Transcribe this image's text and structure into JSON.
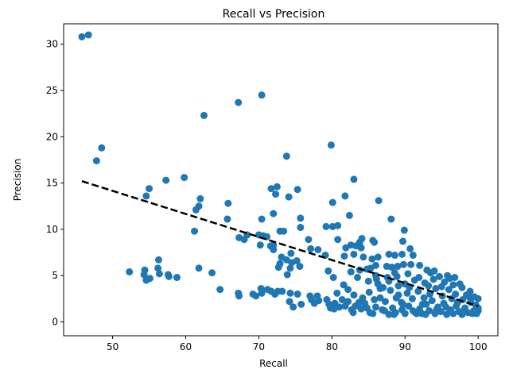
{
  "chart_data": {
    "type": "scatter",
    "title": "Recall vs Precision",
    "xlabel": "Recall",
    "ylabel": "Precision",
    "xlim": [
      43.3,
      102.7
    ],
    "ylim": [
      -1.5,
      32.2
    ],
    "xticks": [
      50,
      60,
      70,
      80,
      90,
      100
    ],
    "yticks": [
      0,
      5,
      10,
      15,
      20,
      25,
      30
    ],
    "grid": false,
    "marker_color": "#1f77b4",
    "trendline": {
      "style": "dashed",
      "color": "#000000",
      "x": [
        45.8,
        100
      ],
      "y": [
        15.2,
        1.7
      ]
    },
    "points": [
      [
        45.8,
        30.8
      ],
      [
        46.7,
        31.0
      ],
      [
        48.5,
        18.8
      ],
      [
        47.8,
        17.4
      ],
      [
        70.4,
        24.5
      ],
      [
        67.2,
        23.7
      ],
      [
        62.5,
        22.3
      ],
      [
        79.9,
        19.1
      ],
      [
        73.8,
        17.9
      ],
      [
        59.8,
        15.6
      ],
      [
        57.3,
        15.3
      ],
      [
        55.0,
        14.4
      ],
      [
        54.6,
        13.6
      ],
      [
        83.0,
        15.4
      ],
      [
        75.3,
        14.3
      ],
      [
        72.5,
        14.6
      ],
      [
        71.7,
        14.4
      ],
      [
        72.3,
        13.8
      ],
      [
        74.1,
        13.5
      ],
      [
        80.1,
        12.9
      ],
      [
        81.8,
        13.6
      ],
      [
        86.4,
        13.1
      ],
      [
        62.0,
        13.3
      ],
      [
        61.8,
        12.5
      ],
      [
        61.4,
        12.1
      ],
      [
        65.8,
        12.8
      ],
      [
        65.7,
        11.1
      ],
      [
        70.4,
        11.1
      ],
      [
        72.0,
        11.7
      ],
      [
        75.7,
        11.2
      ],
      [
        82.4,
        11.5
      ],
      [
        88.1,
        11.1
      ],
      [
        61.2,
        9.8
      ],
      [
        67.3,
        9.1
      ],
      [
        68.0,
        8.9
      ],
      [
        68.4,
        9.4
      ],
      [
        70.0,
        9.4
      ],
      [
        70.6,
        9.3
      ],
      [
        71.1,
        9.2
      ],
      [
        71.6,
        8.2
      ],
      [
        72.0,
        8.3
      ],
      [
        72.9,
        9.8
      ],
      [
        73.4,
        9.8
      ],
      [
        75.7,
        10.2
      ],
      [
        76.8,
        8.9
      ],
      [
        79.2,
        10.3
      ],
      [
        80.1,
        10.3
      ],
      [
        80.8,
        10.4
      ],
      [
        80.8,
        8.9
      ],
      [
        84.1,
        9.0
      ],
      [
        85.6,
        8.8
      ],
      [
        89.9,
        9.9
      ],
      [
        89.7,
        8.7
      ],
      [
        70.2,
        8.3
      ],
      [
        72.0,
        7.8
      ],
      [
        73.1,
        7.0
      ],
      [
        74.4,
        7.4
      ],
      [
        77.1,
        7.9
      ],
      [
        78.1,
        7.8
      ],
      [
        79.1,
        7.2
      ],
      [
        81.9,
        8.0
      ],
      [
        82.6,
        8.3
      ],
      [
        83.3,
        8.2
      ],
      [
        83.8,
        8.6
      ],
      [
        85.8,
        8.6
      ],
      [
        84.0,
        8.0
      ],
      [
        83.0,
        7.3
      ],
      [
        81.7,
        7.1
      ],
      [
        84.3,
        7.0
      ],
      [
        85.5,
        6.8
      ],
      [
        86.3,
        7.0
      ],
      [
        87.8,
        7.3
      ],
      [
        88.6,
        7.2
      ],
      [
        89.6,
        7.3
      ],
      [
        90.7,
        7.9
      ],
      [
        91.1,
        7.2
      ],
      [
        56.3,
        6.7
      ],
      [
        56.2,
        5.8
      ],
      [
        56.4,
        5.2
      ],
      [
        54.4,
        5.6
      ],
      [
        52.3,
        5.4
      ],
      [
        54.3,
        5.1
      ],
      [
        54.6,
        4.5
      ],
      [
        55.1,
        4.7
      ],
      [
        57.6,
        5.1
      ],
      [
        57.7,
        4.9
      ],
      [
        58.8,
        4.8
      ],
      [
        61.8,
        5.8
      ],
      [
        63.6,
        5.3
      ],
      [
        64.7,
        3.5
      ],
      [
        72.9,
        6.3
      ],
      [
        73.8,
        6.7
      ],
      [
        74.5,
        6.4
      ],
      [
        75.2,
        6.6
      ],
      [
        75.6,
        6.0
      ],
      [
        72.7,
        5.9
      ],
      [
        74.3,
        5.8
      ],
      [
        73.9,
        5.1
      ],
      [
        79.5,
        5.5
      ],
      [
        80.2,
        4.8
      ],
      [
        82.6,
        5.4
      ],
      [
        83.8,
        5.6
      ],
      [
        84.8,
        5.7
      ],
      [
        85.3,
        5.8
      ],
      [
        86.0,
        6.1
      ],
      [
        87.5,
        6.0
      ],
      [
        88.2,
        5.9
      ],
      [
        89.0,
        6.0
      ],
      [
        89.8,
        6.2
      ],
      [
        90.8,
        6.2
      ],
      [
        92.0,
        6.1
      ],
      [
        93.0,
        5.6
      ],
      [
        94.0,
        5.5
      ],
      [
        95.8,
        5.0
      ],
      [
        96.8,
        4.8
      ],
      [
        97.5,
        4.1
      ],
      [
        67.2,
        3.1
      ],
      [
        67.3,
        2.8
      ],
      [
        69.2,
        3.0
      ],
      [
        69.6,
        2.8
      ],
      [
        70.3,
        3.6
      ],
      [
        70.4,
        3.1
      ],
      [
        71.2,
        3.5
      ],
      [
        71.7,
        3.3
      ],
      [
        72.2,
        3.0
      ],
      [
        72.6,
        3.3
      ],
      [
        73.2,
        3.3
      ],
      [
        74.3,
        3.1
      ],
      [
        74.2,
        2.2
      ],
      [
        74.7,
        1.6
      ],
      [
        75.3,
        3.0
      ],
      [
        75.8,
        1.9
      ],
      [
        77.0,
        2.8
      ],
      [
        77.2,
        2.4
      ],
      [
        77.6,
        2.0
      ],
      [
        78.0,
        2.8
      ],
      [
        78.2,
        2.3
      ],
      [
        79.3,
        2.4
      ],
      [
        79.6,
        1.9
      ],
      [
        79.8,
        1.5
      ],
      [
        80.3,
        1.4
      ],
      [
        81.0,
        1.6
      ],
      [
        81.8,
        1.7
      ],
      [
        82.2,
        2.2
      ],
      [
        82.7,
        1.3
      ],
      [
        83.2,
        1.7
      ],
      [
        84.0,
        1.4
      ],
      [
        84.8,
        1.5
      ],
      [
        85.2,
        1.0
      ],
      [
        86.0,
        1.6
      ],
      [
        86.6,
        2.6
      ],
      [
        87.2,
        1.2
      ],
      [
        87.8,
        0.8
      ],
      [
        88.3,
        1.5
      ],
      [
        88.7,
        1.0
      ],
      [
        89.1,
        2.9
      ],
      [
        89.6,
        1.3
      ],
      [
        90.0,
        0.9
      ],
      [
        90.5,
        1.7
      ],
      [
        91.1,
        1.2
      ],
      [
        91.6,
        0.9
      ],
      [
        92.0,
        1.4
      ],
      [
        92.4,
        1.9
      ],
      [
        92.8,
        0.8
      ],
      [
        93.3,
        1.2
      ],
      [
        93.7,
        2.3
      ],
      [
        94.1,
        0.9
      ],
      [
        94.5,
        1.6
      ],
      [
        94.9,
        1.1
      ],
      [
        95.3,
        2.0
      ],
      [
        95.7,
        0.8
      ],
      [
        96.2,
        1.3
      ],
      [
        96.6,
        0.9
      ],
      [
        97.0,
        1.7
      ],
      [
        97.4,
        1.1
      ],
      [
        97.8,
        0.8
      ],
      [
        98.2,
        1.5
      ],
      [
        98.6,
        1.0
      ],
      [
        99.0,
        2.1
      ],
      [
        99.4,
        1.2
      ],
      [
        99.8,
        0.9
      ],
      [
        100.0,
        1.5
      ],
      [
        100.0,
        2.5
      ],
      [
        99.7,
        1.8
      ],
      [
        98.9,
        2.6
      ],
      [
        97.9,
        2.4
      ],
      [
        96.9,
        3.0
      ],
      [
        96.0,
        3.5
      ],
      [
        95.1,
        2.8
      ],
      [
        94.2,
        3.6
      ],
      [
        93.4,
        3.0
      ],
      [
        92.6,
        2.6
      ],
      [
        91.8,
        3.3
      ],
      [
        91.0,
        2.5
      ],
      [
        90.3,
        3.1
      ],
      [
        89.5,
        2.1
      ],
      [
        88.8,
        2.6
      ],
      [
        88.0,
        3.4
      ],
      [
        87.3,
        2.2
      ],
      [
        86.6,
        3.6
      ],
      [
        85.8,
        2.4
      ],
      [
        85.1,
        3.2
      ],
      [
        84.5,
        2.0
      ],
      [
        83.7,
        2.1
      ],
      [
        83.0,
        2.9
      ],
      [
        82.2,
        3.5
      ],
      [
        81.6,
        4.0
      ],
      [
        80.7,
        3.1
      ],
      [
        86.1,
        4.6
      ],
      [
        87.8,
        4.4
      ],
      [
        88.9,
        4.9
      ],
      [
        90.0,
        4.1
      ],
      [
        91.3,
        4.5
      ],
      [
        92.7,
        4.2
      ],
      [
        93.9,
        4.6
      ],
      [
        95.4,
        4.3
      ],
      [
        96.6,
        4.0
      ],
      [
        97.8,
        3.7
      ],
      [
        98.9,
        3.3
      ],
      [
        99.5,
        2.7
      ],
      [
        100.0,
        1.2
      ],
      [
        94.3,
        1.3
      ],
      [
        92.9,
        1.9
      ],
      [
        91.4,
        1.0
      ],
      [
        89.7,
        1.9
      ],
      [
        88.5,
        0.8
      ],
      [
        86.9,
        1.3
      ],
      [
        85.6,
        0.9
      ],
      [
        84.2,
        2.6
      ],
      [
        82.9,
        1.0
      ],
      [
        81.4,
        2.4
      ],
      [
        80.4,
        2.0
      ],
      [
        93.2,
        3.9
      ],
      [
        95.0,
        3.8
      ],
      [
        96.4,
        2.5
      ],
      [
        97.2,
        2.1
      ],
      [
        98.4,
        2.9
      ],
      [
        90.6,
        3.7
      ],
      [
        89.1,
        3.9
      ],
      [
        87.6,
        4.8
      ],
      [
        86.3,
        4.1
      ],
      [
        85.0,
        4.4
      ],
      [
        83.5,
        4.8
      ],
      [
        93.5,
        5.3
      ],
      [
        94.7,
        4.9
      ],
      [
        96.1,
        4.7
      ],
      [
        91.9,
        4.8
      ],
      [
        90.4,
        5.2
      ],
      [
        88.6,
        5.3
      ],
      [
        87.0,
        3.7
      ],
      [
        86.0,
        5.0
      ],
      [
        92.3,
        0.9
      ],
      [
        95.6,
        1.6
      ],
      [
        98.0,
        1.2
      ],
      [
        99.2,
        0.9
      ]
    ]
  }
}
